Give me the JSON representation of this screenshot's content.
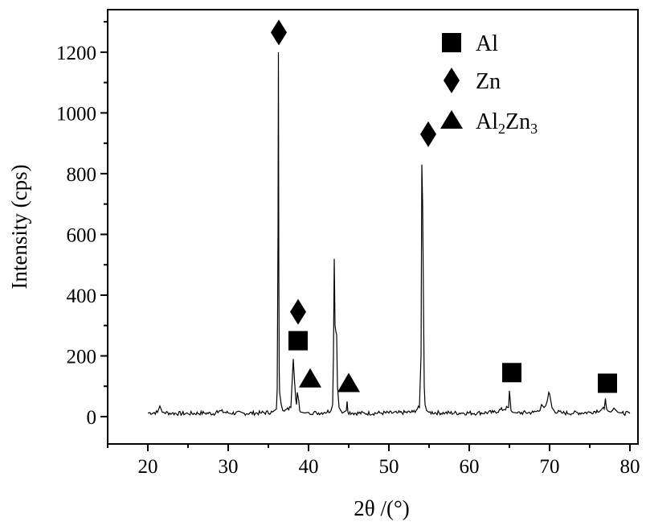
{
  "chart_data": {
    "type": "line",
    "xlabel": "2θ /(°)",
    "ylabel": "Intensity (cps)",
    "xlim": [
      15,
      81
    ],
    "ylim": [
      -90,
      1340
    ],
    "x_ticks": [
      "20",
      "30",
      "40",
      "50",
      "60",
      "70",
      "80"
    ],
    "y_ticks": [
      "0",
      "200",
      "400",
      "600",
      "800",
      "1000",
      "1200"
    ],
    "grid": false,
    "legend_position": "top-right",
    "legend": [
      {
        "marker": "square",
        "label": "Al"
      },
      {
        "marker": "diamond",
        "label": "Zn"
      },
      {
        "marker": "triangle",
        "label_main": "Al",
        "label_sub1": "2",
        "label_mid": "Zn",
        "label_sub2": "3"
      }
    ],
    "series": [
      {
        "x": [
          20.0,
          21.2,
          21.5,
          21.8,
          23.0,
          25.0,
          27.0,
          28.4,
          28.6,
          30.0,
          32.0,
          34.0,
          35.5,
          36.0,
          36.1,
          36.2,
          36.25,
          36.3,
          36.35,
          36.4,
          36.5,
          36.6,
          36.8,
          37.0,
          37.8,
          38.1,
          38.25,
          38.4,
          38.5,
          38.6,
          38.8,
          38.9,
          39.0,
          39.2,
          39.5,
          40.0,
          41.0,
          42.0,
          42.8,
          43.0,
          43.1,
          43.2,
          43.3,
          43.4,
          43.5,
          43.6,
          43.8,
          44.2,
          44.7,
          44.8,
          44.9,
          45.5,
          47.0,
          49.0,
          51.0,
          53.0,
          53.8,
          54.0,
          54.1,
          54.2,
          54.3,
          54.4,
          54.5,
          54.7,
          55.0,
          57.0,
          59.0,
          61.0,
          63.0,
          64.9,
          65.0,
          65.1,
          65.2,
          65.4,
          66.0,
          68.0,
          68.8,
          69.0,
          69.3,
          69.5,
          69.7,
          69.9,
          70.0,
          70.1,
          70.3,
          70.6,
          71.5,
          73.0,
          75.0,
          76.8,
          76.95,
          77.0,
          77.1,
          77.3,
          77.6,
          77.8,
          78.0,
          78.5,
          79.0,
          80.0
        ],
        "values": [
          12,
          14,
          35,
          14,
          11,
          10,
          12,
          10,
          20,
          12,
          11,
          12,
          15,
          25,
          90,
          600,
          1200,
          500,
          150,
          80,
          60,
          40,
          20,
          18,
          30,
          190,
          120,
          60,
          40,
          80,
          50,
          20,
          15,
          14,
          12,
          14,
          12,
          14,
          20,
          40,
          200,
          520,
          300,
          280,
          270,
          100,
          30,
          12,
          20,
          50,
          15,
          12,
          11,
          12,
          12,
          15,
          30,
          200,
          830,
          700,
          400,
          100,
          40,
          20,
          14,
          12,
          12,
          12,
          14,
          30,
          85,
          55,
          20,
          14,
          12,
          14,
          20,
          40,
          30,
          35,
          50,
          80,
          75,
          60,
          30,
          18,
          12,
          12,
          14,
          25,
          60,
          45,
          25,
          18,
          15,
          20,
          28,
          14,
          12,
          10
        ]
      }
    ],
    "peak_markers": [
      {
        "marker": "diamond",
        "x": 36.3,
        "y": 1265
      },
      {
        "marker": "diamond",
        "x": 38.7,
        "y": 345
      },
      {
        "marker": "square",
        "x": 38.7,
        "y": 250
      },
      {
        "marker": "triangle",
        "x": 40.2,
        "y": 125
      },
      {
        "marker": "triangle",
        "x": 45.0,
        "y": 110
      },
      {
        "marker": "diamond",
        "x": 54.9,
        "y": 930
      },
      {
        "marker": "square",
        "x": 65.3,
        "y": 145
      },
      {
        "marker": "square",
        "x": 77.2,
        "y": 110
      }
    ]
  }
}
